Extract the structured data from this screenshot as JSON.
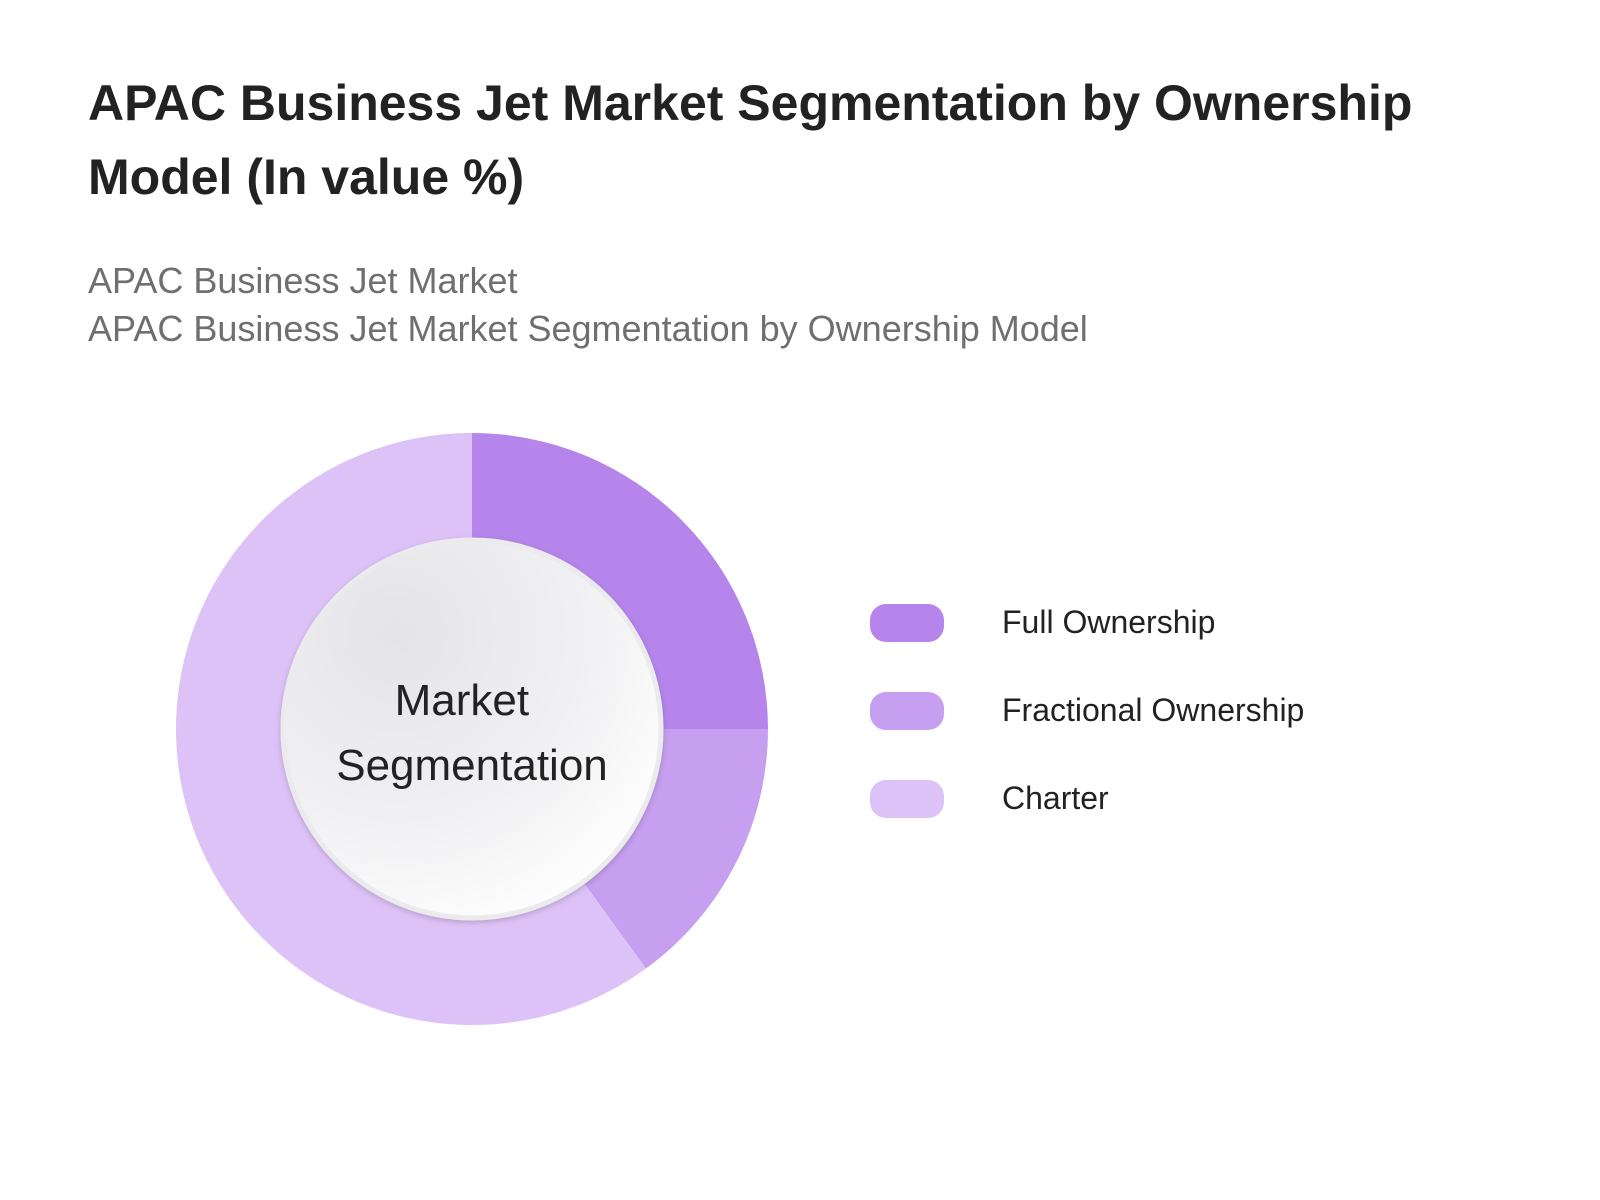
{
  "header": {
    "title": "APAC Business Jet Market Segmentation by Ownership Model (In value %)",
    "subtitle_line1": "APAC Business Jet Market",
    "subtitle_line2": "APAC Business Jet Market Segmentation by Ownership Model"
  },
  "chart_data": {
    "type": "pie",
    "variant": "donut",
    "center_label": [
      "Market",
      "Segmentation"
    ],
    "categories": [
      "Full Ownership",
      "Fractional Ownership",
      "Charter"
    ],
    "values": [
      25,
      15,
      60
    ],
    "colors": [
      "#b585ec",
      "#c69ff0",
      "#ddc2f7"
    ],
    "legend_position": "right"
  }
}
